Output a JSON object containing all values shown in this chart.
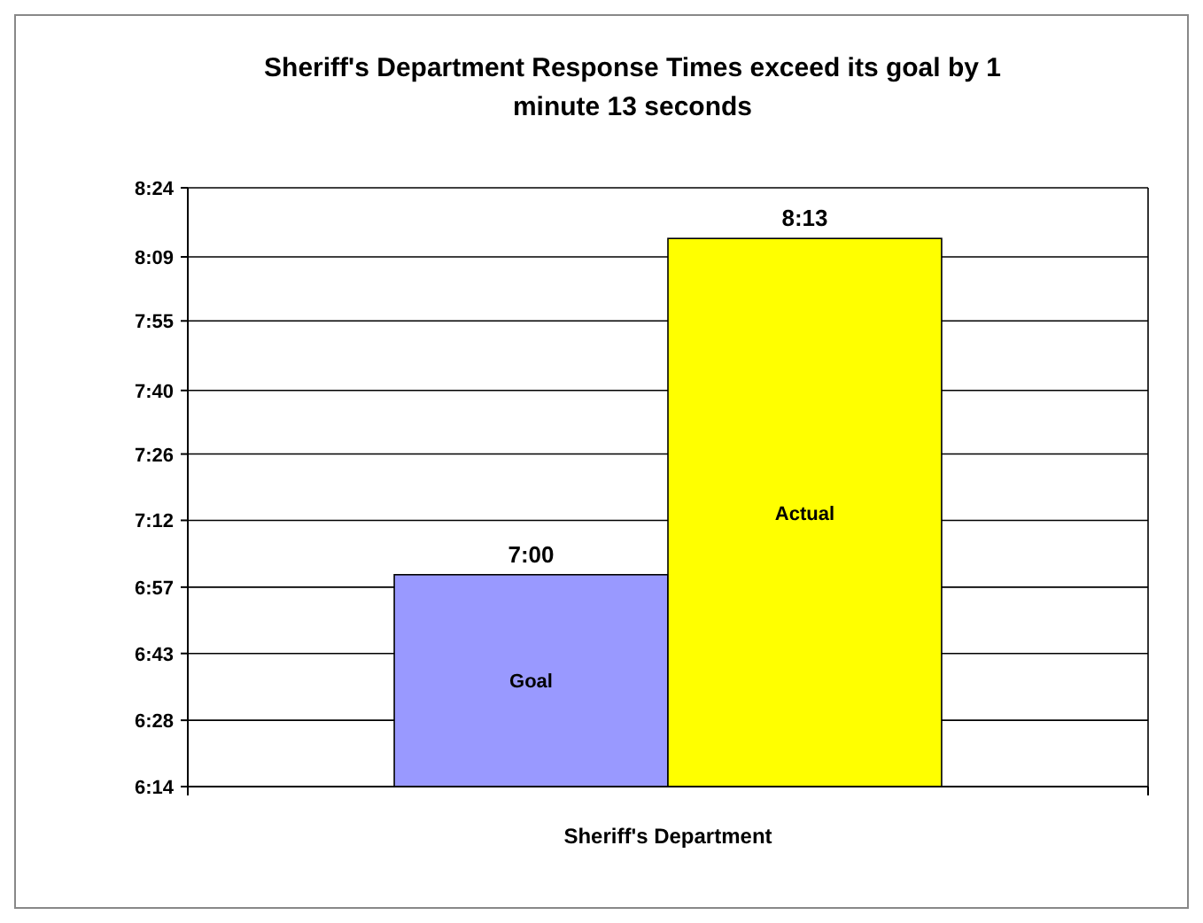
{
  "chart_data": {
    "type": "bar",
    "title": "Sheriff's Department Response Times exceed its goal by 1 minute 13 seconds",
    "categories": [
      "Sheriff's Department"
    ],
    "series": [
      {
        "name": "Goal",
        "color": "#9999ff",
        "values": [
          420
        ],
        "value_labels": [
          "7:00"
        ]
      },
      {
        "name": "Actual",
        "color": "#ffff00",
        "values": [
          493
        ],
        "value_labels": [
          "8:13"
        ]
      }
    ],
    "ylim": [
      374,
      504
    ],
    "yticks": [
      {
        "value": 374,
        "label": "6:14"
      },
      {
        "value": 388.4,
        "label": "6:28"
      },
      {
        "value": 402.9,
        "label": "6:43"
      },
      {
        "value": 417.3,
        "label": "6:57"
      },
      {
        "value": 431.8,
        "label": "7:12"
      },
      {
        "value": 446.2,
        "label": "7:26"
      },
      {
        "value": 460,
        "label": "7:40"
      },
      {
        "value": 475.1,
        "label": "7:55"
      },
      {
        "value": 489,
        "label": "8:09"
      },
      {
        "value": 504,
        "label": "8:24"
      }
    ],
    "grid": "y",
    "legend": false
  }
}
